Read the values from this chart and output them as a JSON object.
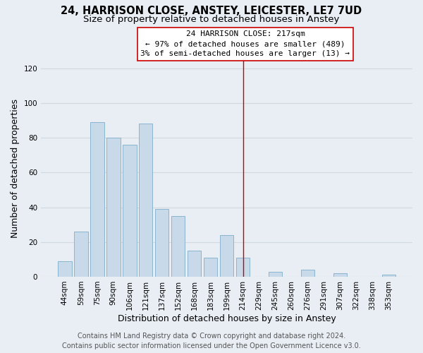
{
  "title": "24, HARRISON CLOSE, ANSTEY, LEICESTER, LE7 7UD",
  "subtitle": "Size of property relative to detached houses in Anstey",
  "xlabel": "Distribution of detached houses by size in Anstey",
  "ylabel": "Number of detached properties",
  "bar_labels": [
    "44sqm",
    "59sqm",
    "75sqm",
    "90sqm",
    "106sqm",
    "121sqm",
    "137sqm",
    "152sqm",
    "168sqm",
    "183sqm",
    "199sqm",
    "214sqm",
    "229sqm",
    "245sqm",
    "260sqm",
    "276sqm",
    "291sqm",
    "307sqm",
    "322sqm",
    "338sqm",
    "353sqm"
  ],
  "bar_values": [
    9,
    26,
    89,
    80,
    76,
    88,
    39,
    35,
    15,
    11,
    24,
    11,
    0,
    3,
    0,
    4,
    0,
    2,
    0,
    0,
    1
  ],
  "bar_color": "#c8daea",
  "bar_edge_color": "#8ab4d0",
  "ylim": [
    0,
    125
  ],
  "yticks": [
    0,
    20,
    40,
    60,
    80,
    100,
    120
  ],
  "property_line_label": "24 HARRISON CLOSE: 217sqm",
  "annotation_line1": "← 97% of detached houses are smaller (489)",
  "annotation_line2": "3% of semi-detached houses are larger (13) →",
  "annotation_box_color": "#ffffff",
  "annotation_box_edge_color": "#cc0000",
  "vline_color": "#cc0000",
  "vline_x_index": 11,
  "footer1": "Contains HM Land Registry data © Crown copyright and database right 2024.",
  "footer2": "Contains public sector information licensed under the Open Government Licence v3.0.",
  "background_color": "#e8eef4",
  "grid_color": "#d0d8e0",
  "title_fontsize": 10.5,
  "subtitle_fontsize": 9.5,
  "axis_label_fontsize": 9,
  "tick_fontsize": 7.5,
  "footer_fontsize": 7,
  "annotation_fontsize": 8
}
